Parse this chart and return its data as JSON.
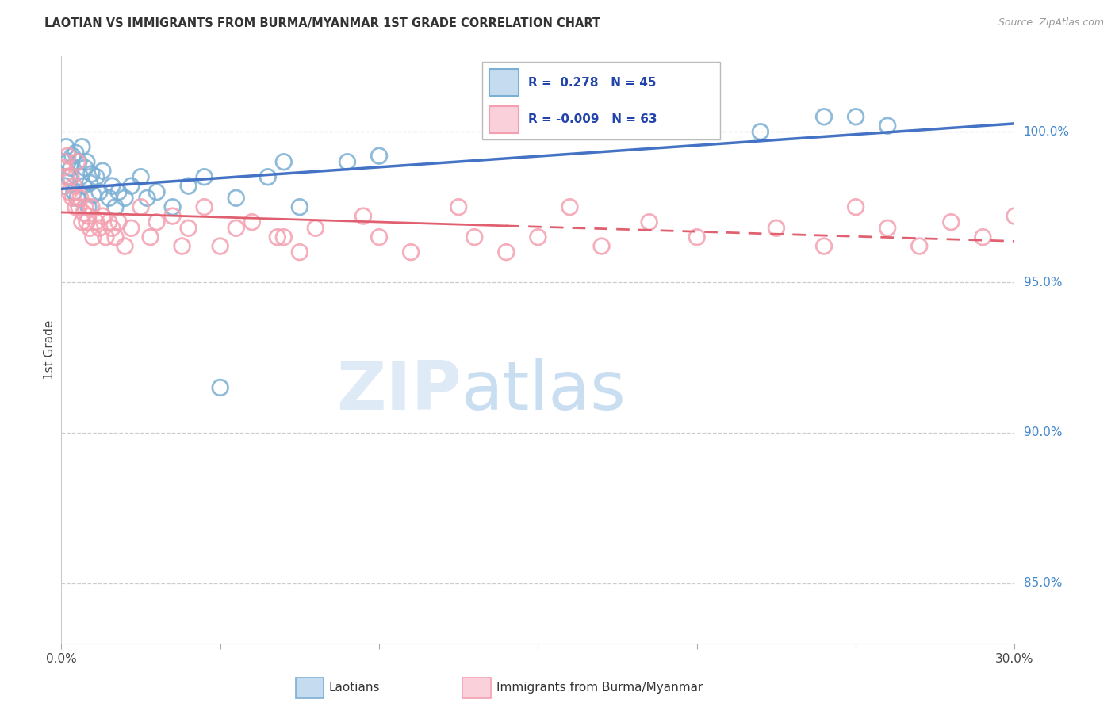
{
  "title": "LAOTIAN VS IMMIGRANTS FROM BURMA/MYANMAR 1ST GRADE CORRELATION CHART",
  "source": "Source: ZipAtlas.com",
  "ylabel": "1st Grade",
  "xlim": [
    0.0,
    30.0
  ],
  "ylim": [
    83.0,
    102.5
  ],
  "yticks_right": [
    85.0,
    90.0,
    95.0,
    100.0
  ],
  "legend_blue_R": "0.278",
  "legend_blue_N": "45",
  "legend_pink_R": "-0.009",
  "legend_pink_N": "63",
  "blue_color": "#7BAFD4",
  "pink_color": "#F4A0B0",
  "blue_fill_color": "#C5DCF0",
  "pink_fill_color": "#FAD0DA",
  "blue_line_color": "#4472C4",
  "pink_line_color": "#E06070",
  "watermark_zip": "ZIP",
  "watermark_atlas": "atlas",
  "blue_x": [
    0.1,
    0.15,
    0.2,
    0.25,
    0.3,
    0.35,
    0.4,
    0.45,
    0.5,
    0.55,
    0.6,
    0.65,
    0.7,
    0.75,
    0.8,
    0.85,
    0.9,
    0.95,
    1.0,
    1.1,
    1.2,
    1.3,
    1.5,
    1.6,
    1.7,
    1.8,
    2.0,
    2.2,
    2.5,
    2.7,
    3.0,
    3.5,
    4.0,
    4.5,
    5.0,
    5.5,
    6.5,
    7.0,
    7.5,
    9.0,
    10.0,
    22.0,
    24.0,
    25.0,
    26.0
  ],
  "blue_y": [
    98.2,
    99.5,
    99.0,
    98.5,
    98.8,
    99.2,
    98.0,
    99.3,
    97.8,
    99.0,
    98.5,
    99.5,
    98.2,
    98.8,
    99.0,
    97.5,
    98.3,
    98.6,
    97.9,
    98.5,
    98.0,
    98.7,
    97.8,
    98.2,
    97.5,
    98.0,
    97.8,
    98.2,
    98.5,
    97.8,
    98.0,
    97.5,
    98.2,
    98.5,
    91.5,
    97.8,
    98.5,
    99.0,
    97.5,
    99.0,
    99.2,
    100.0,
    100.5,
    100.5,
    100.2
  ],
  "pink_x": [
    0.05,
    0.1,
    0.15,
    0.2,
    0.25,
    0.3,
    0.35,
    0.4,
    0.45,
    0.5,
    0.55,
    0.6,
    0.65,
    0.7,
    0.75,
    0.8,
    0.85,
    0.9,
    0.95,
    1.0,
    1.1,
    1.2,
    1.3,
    1.4,
    1.5,
    1.6,
    1.7,
    1.8,
    2.0,
    2.2,
    2.5,
    2.8,
    3.0,
    3.5,
    4.0,
    4.5,
    5.0,
    5.5,
    6.0,
    7.0,
    7.5,
    8.0,
    9.5,
    10.0,
    11.0,
    12.5,
    14.0,
    15.0,
    17.0,
    18.5,
    20.0,
    22.5,
    24.0,
    25.0,
    26.0,
    27.0,
    28.0,
    29.0,
    30.0,
    16.0,
    13.0,
    6.8,
    3.8
  ],
  "pink_y": [
    98.8,
    99.0,
    98.5,
    99.2,
    98.0,
    98.5,
    97.8,
    98.2,
    97.5,
    99.0,
    97.5,
    97.8,
    97.0,
    97.3,
    97.5,
    97.0,
    97.2,
    96.8,
    97.5,
    96.5,
    97.0,
    96.8,
    97.2,
    96.5,
    97.0,
    96.8,
    96.5,
    97.0,
    96.2,
    96.8,
    97.5,
    96.5,
    97.0,
    97.2,
    96.8,
    97.5,
    96.2,
    96.8,
    97.0,
    96.5,
    96.0,
    96.8,
    97.2,
    96.5,
    96.0,
    97.5,
    96.0,
    96.5,
    96.2,
    97.0,
    96.5,
    96.8,
    96.2,
    97.5,
    96.8,
    96.2,
    97.0,
    96.5,
    97.2,
    97.5,
    96.5,
    96.5,
    96.2
  ]
}
